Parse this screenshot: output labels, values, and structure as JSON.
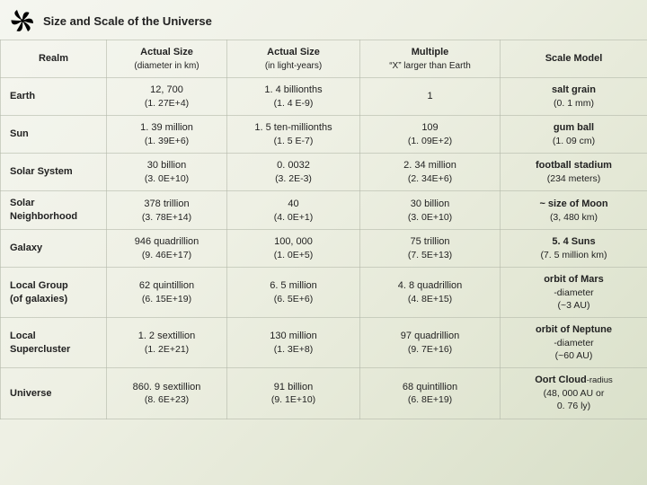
{
  "title": "Size and Scale of the Universe",
  "headers": {
    "realm": "Realm",
    "size_km": "Actual Size",
    "size_km_sub": "(diameter in km)",
    "size_ly": "Actual Size",
    "size_ly_sub": "(in light-years)",
    "multiple": "Multiple",
    "multiple_sub": "“X” larger than Earth",
    "model": "Scale Model"
  },
  "rows": [
    {
      "realm": "Earth",
      "realm_sub": "",
      "km1": "12, 700",
      "km2": "(1. 27E+4)",
      "ly1": "1. 4 billionths",
      "ly2": "(1. 4 E-9)",
      "mult1": "1",
      "mult2": "",
      "model_b": "salt grain",
      "model_s1": "(0. 1 mm)",
      "model_s2": ""
    },
    {
      "realm": "Sun",
      "realm_sub": "",
      "km1": "1. 39 million",
      "km2": "(1. 39E+6)",
      "ly1": "1. 5 ten-millionths",
      "ly2": "(1. 5 E-7)",
      "mult1": "109",
      "mult2": "(1. 09E+2)",
      "model_b": "gum ball",
      "model_s1": "(1. 09 cm)",
      "model_s2": ""
    },
    {
      "realm": "Solar System",
      "realm_sub": "",
      "km1": "30 billion",
      "km2": "(3. 0E+10)",
      "ly1": "0. 0032",
      "ly2": "(3. 2E-3)",
      "mult1": "2. 34 million",
      "mult2": "(2. 34E+6)",
      "model_b": "football stadium",
      "model_s1": "(234 meters)",
      "model_s2": ""
    },
    {
      "realm": "Solar",
      "realm_sub": "Neighborhood",
      "km1": "378 trillion",
      "km2": "(3. 78E+14)",
      "ly1": "40",
      "ly2": "(4. 0E+1)",
      "mult1": "30 billion",
      "mult2": "(3. 0E+10)",
      "model_b": "~ size of Moon",
      "model_s1": "(3, 480 km)",
      "model_s2": ""
    },
    {
      "realm": "Galaxy",
      "realm_sub": "",
      "km1": "946 quadrillion",
      "km2": "(9. 46E+17)",
      "ly1": "100, 000",
      "ly2": "(1. 0E+5)",
      "mult1": "75 trillion",
      "mult2": "(7. 5E+13)",
      "model_b": "5. 4 Suns",
      "model_s1": "(7. 5 million km)",
      "model_s2": ""
    },
    {
      "realm": "Local Group",
      "realm_sub": "(of galaxies)",
      "km1": "62 quintillion",
      "km2": "(6. 15E+19)",
      "ly1": "6. 5 million",
      "ly2": "(6. 5E+6)",
      "mult1": "4. 8 quadrillion",
      "mult2": "(4. 8E+15)",
      "model_b": "orbit of Mars",
      "model_s1": "-diameter",
      "model_s2": "(~3 AU)"
    },
    {
      "realm": "Local",
      "realm_sub": "Supercluster",
      "km1": "1. 2 sextillion",
      "km2": "(1. 2E+21)",
      "ly1": "130 million",
      "ly2": "(1. 3E+8)",
      "mult1": "97 quadrillion",
      "mult2": "(9. 7E+16)",
      "model_b": "orbit of Neptune",
      "model_s1": "-diameter",
      "model_s2": "(~60 AU)"
    },
    {
      "realm": "Universe",
      "realm_sub": "",
      "km1": "860. 9 sextillion",
      "km2": "(8. 6E+23)",
      "ly1": "91 billion",
      "ly2": "(9. 1E+10)",
      "mult1": "68 quintillion",
      "mult2": "(6. 8E+19)",
      "model_b": "Oort Cloud",
      "model_tail": "-radius",
      "model_s1": "(48, 000 AU or",
      "model_s2": "0. 76 ly)"
    }
  ],
  "colors": {
    "text": "#222222",
    "border": "#b4b9aa",
    "bg_start": "#f5f6f0",
    "bg_end": "#d8dfc8"
  }
}
